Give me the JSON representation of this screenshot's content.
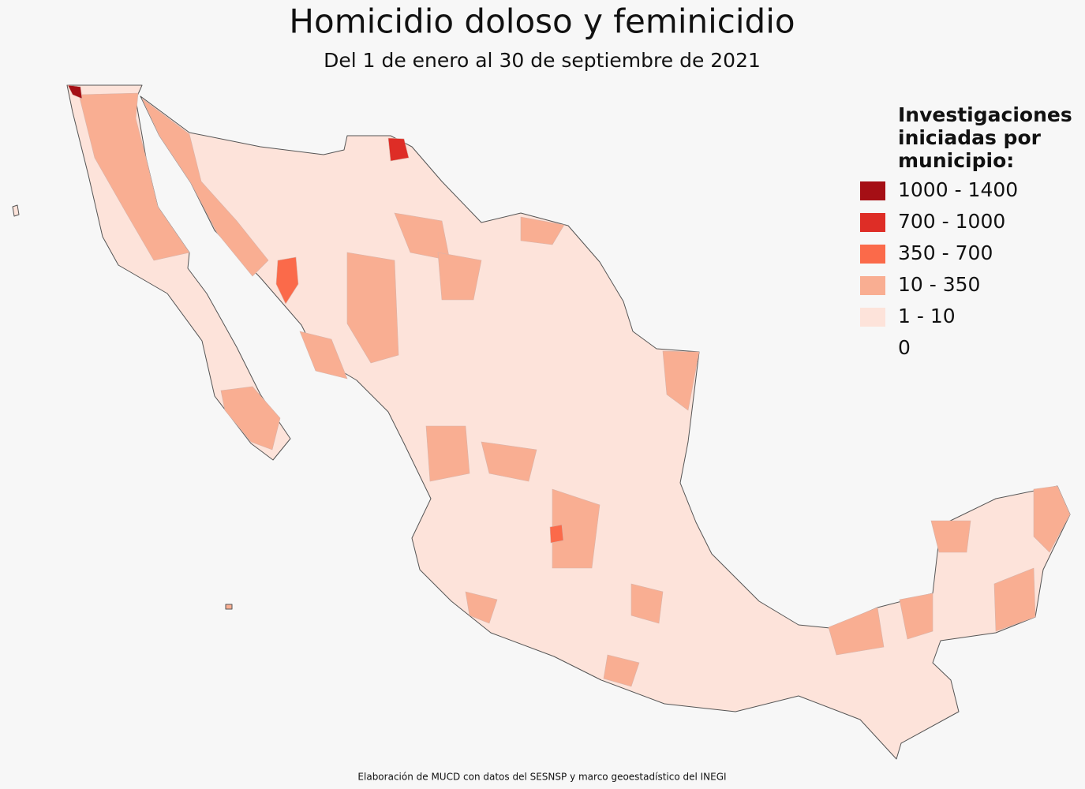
{
  "header": {
    "title": "Homicidio doloso y feminicidio",
    "subtitle": "Del 1 de enero al 30 de septiembre de 2021"
  },
  "legend": {
    "title_lines": [
      "Investigaciones",
      "iniciadas por",
      "municipio:"
    ],
    "items": [
      {
        "label": "1000 - 1400",
        "color": "#a50f15"
      },
      {
        "label": "700 - 1000",
        "color": "#de2d26"
      },
      {
        "label": "350 - 700",
        "color": "#fb6a4a"
      },
      {
        "label": "10 - 350",
        "color": "#f9ae92"
      },
      {
        "label": "1 - 10",
        "color": "#fde3da"
      },
      {
        "label": "0",
        "color": "#f7f7f7"
      }
    ]
  },
  "footer": {
    "source": "Elaboración de MUCD con datos del SESNSP y marco geoestadístico del INEGI"
  }
}
